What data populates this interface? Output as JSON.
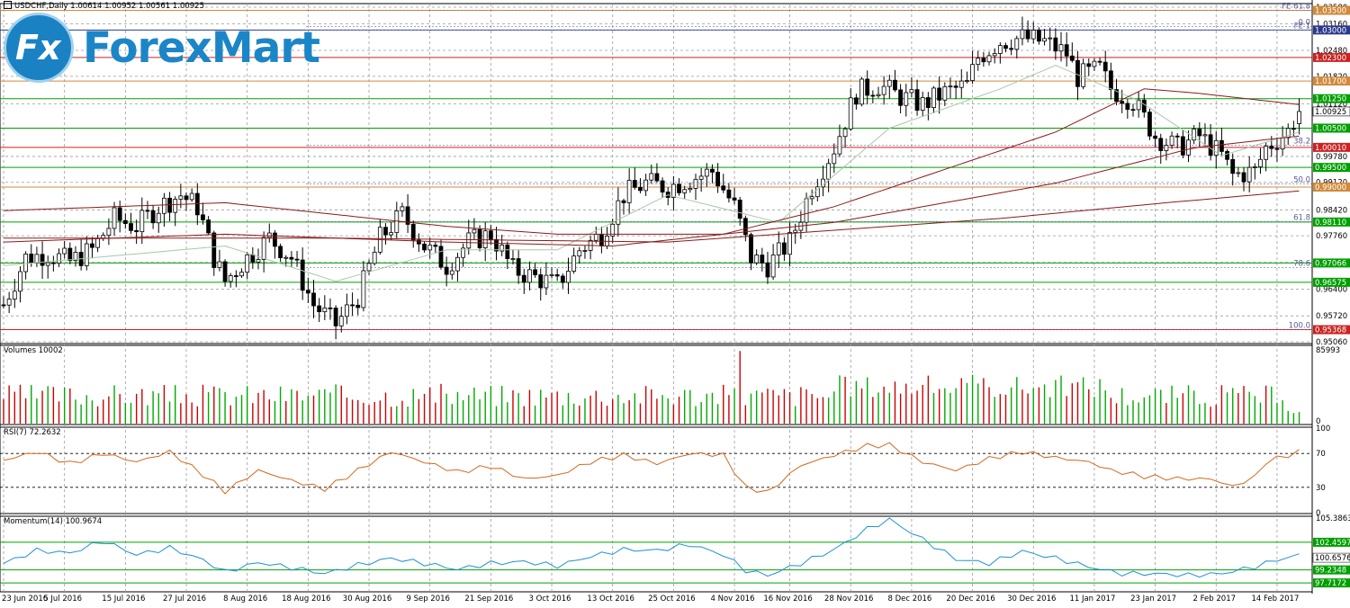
{
  "chart_title": "USDCHF,Daily  1.00614 1.00952 1.00561 1.00925",
  "logo": {
    "letter": "Fx",
    "text": "ForexMart"
  },
  "colors": {
    "grid": "#9a9a9a",
    "bull": "#00aa00",
    "bear": "#cc0000",
    "ma_fast": "#a8c8a8",
    "ma_slow": "#8a1a1a",
    "rsi": "#d2691e",
    "momentum": "#1e90d6"
  },
  "chart_data": [
    {
      "type": "candlestick",
      "ylim": [
        0.9506,
        1.0358
      ],
      "price_ticks": [
        "1.03580",
        "1.03160",
        "1.02480",
        "1.01820",
        "1.01120",
        "0.99780",
        "0.99120",
        "0.98420",
        "0.97760",
        "0.97080",
        "0.96400",
        "0.95720",
        "0.95060"
      ],
      "current_price": "1.00925",
      "level_lines": [
        {
          "value": 1.035,
          "label": "1.03500",
          "color": "#d08a3a"
        },
        {
          "value": 1.03,
          "label": "1.03000",
          "color": "#2c3a8c"
        },
        {
          "value": 1.023,
          "label": "1.02300",
          "color": "#cc2222"
        },
        {
          "value": 1.017,
          "label": "1.01700",
          "color": "#d08a3a"
        },
        {
          "value": 1.0125,
          "label": "1.01250",
          "color": "#00a000"
        },
        {
          "value": 1.005,
          "label": "1.00500",
          "color": "#00a000"
        },
        {
          "value": 1.0001,
          "label": "1.00010",
          "color": "#cc2222"
        },
        {
          "value": 0.995,
          "label": "0.99500",
          "color": "#00a000"
        },
        {
          "value": 0.99,
          "label": "0.99000",
          "color": "#d08a3a"
        },
        {
          "value": 0.9811,
          "label": "0.98110",
          "color": "#00a000"
        },
        {
          "value": 0.97066,
          "label": "0.97066",
          "color": "#00a000"
        },
        {
          "value": 0.96575,
          "label": "0.96575",
          "color": "#00a000"
        },
        {
          "value": 0.95368,
          "label": "0.95368",
          "color": "#cc2222"
        }
      ],
      "fib_lines": [
        {
          "value": 1.035,
          "label": "FE 61.8"
        },
        {
          "value": 1.0309,
          "label": "0.0"
        },
        {
          "value": 1.03,
          "label": "FE 1"
        },
        {
          "value": 1.0006,
          "label": "38.2"
        },
        {
          "value": 0.9908,
          "label": "50.0"
        },
        {
          "value": 0.9812,
          "label": "61.8"
        },
        {
          "value": 0.9695,
          "label": "78.6"
        },
        {
          "value": 0.9537,
          "label": "100.0"
        }
      ],
      "x_labels": [
        "23 Jun 2016",
        "5 Jul 2016",
        "15 Jul 2016",
        "27 Jul 2016",
        "8 Aug 2016",
        "18 Aug 2016",
        "30 Aug 2016",
        "9 Sep 2016",
        "21 Sep 2016",
        "3 Oct 2016",
        "13 Oct 2016",
        "25 Oct 2016",
        "4 Nov 2016",
        "16 Nov 2016",
        "28 Nov 2016",
        "8 Dec 2016",
        "20 Dec 2016",
        "30 Dec 2016",
        "11 Jan 2017",
        "23 Jan 2017",
        "2 Feb 2017",
        "14 Feb 2017"
      ],
      "close_points": [
        [
          0,
          0.96
        ],
        [
          4,
          0.972
        ],
        [
          8,
          0.973
        ],
        [
          12,
          0.971
        ],
        [
          16,
          0.974
        ],
        [
          20,
          0.982
        ],
        [
          24,
          0.98
        ],
        [
          28,
          0.985
        ],
        [
          32,
          0.988
        ],
        [
          35,
          0.985
        ],
        [
          38,
          0.972
        ],
        [
          40,
          0.966
        ],
        [
          44,
          0.972
        ],
        [
          48,
          0.977
        ],
        [
          52,
          0.972
        ],
        [
          56,
          0.96
        ],
        [
          60,
          0.955
        ],
        [
          64,
          0.962
        ],
        [
          68,
          0.977
        ],
        [
          72,
          0.983
        ],
        [
          76,
          0.975
        ],
        [
          80,
          0.97
        ],
        [
          84,
          0.976
        ],
        [
          88,
          0.978
        ],
        [
          92,
          0.969
        ],
        [
          96,
          0.967
        ],
        [
          100,
          0.965
        ],
        [
          104,
          0.974
        ],
        [
          108,
          0.978
        ],
        [
          112,
          0.988
        ],
        [
          116,
          0.991
        ],
        [
          120,
          0.99
        ],
        [
          124,
          0.992
        ],
        [
          128,
          0.994
        ],
        [
          132,
          0.985
        ],
        [
          135,
          0.972
        ],
        [
          138,
          0.97
        ],
        [
          142,
          0.976
        ],
        [
          146,
          0.99
        ],
        [
          150,
          1.0
        ],
        [
          154,
          1.014
        ],
        [
          158,
          1.016
        ],
        [
          162,
          1.013
        ],
        [
          166,
          1.011
        ],
        [
          170,
          1.014
        ],
        [
          174,
          1.016
        ],
        [
          176,
          1.023
        ],
        [
          180,
          1.027
        ],
        [
          184,
          1.028
        ],
        [
          188,
          1.027
        ],
        [
          192,
          1.024
        ],
        [
          194,
          1.018
        ],
        [
          198,
          1.02
        ],
        [
          200,
          1.015
        ],
        [
          204,
          1.012
        ],
        [
          208,
          1.003
        ],
        [
          212,
          1.0
        ],
        [
          216,
          1.003
        ],
        [
          220,
          0.998
        ],
        [
          222,
          0.993
        ],
        [
          226,
          0.994
        ],
        [
          228,
          1.0
        ],
        [
          232,
          1.0042
        ],
        [
          234,
          1.00925
        ]
      ],
      "ma_fast_points": [
        [
          0,
          0.97
        ],
        [
          40,
          0.975
        ],
        [
          60,
          0.966
        ],
        [
          80,
          0.974
        ],
        [
          100,
          0.974
        ],
        [
          120,
          0.988
        ],
        [
          140,
          0.981
        ],
        [
          160,
          1.005
        ],
        [
          180,
          1.015
        ],
        [
          190,
          1.021
        ],
        [
          205,
          1.012
        ],
        [
          220,
          0.998
        ],
        [
          234,
          1.004
        ]
      ],
      "ma_slow_points": [
        [
          0,
          0.984
        ],
        [
          40,
          0.986
        ],
        [
          80,
          0.98
        ],
        [
          100,
          0.978
        ],
        [
          130,
          0.978
        ],
        [
          150,
          0.985
        ],
        [
          190,
          1.004
        ],
        [
          206,
          1.015
        ],
        [
          215,
          1.014
        ],
        [
          234,
          1.011
        ]
      ],
      "ma_slow2_points": [
        [
          0,
          0.976
        ],
        [
          40,
          0.978
        ],
        [
          80,
          0.976
        ],
        [
          110,
          0.975
        ],
        [
          150,
          0.981
        ],
        [
          190,
          0.991
        ],
        [
          215,
          1.0
        ],
        [
          234,
          1.003
        ]
      ],
      "ma_slow3_points": [
        [
          0,
          0.977
        ],
        [
          60,
          0.977
        ],
        [
          120,
          0.976
        ],
        [
          180,
          0.982
        ],
        [
          210,
          0.986
        ],
        [
          234,
          0.989
        ]
      ]
    },
    {
      "type": "bar",
      "label": "Volumes 10002",
      "ylim": [
        0,
        85993
      ],
      "tick_labels": [
        "85993",
        "0"
      ]
    },
    {
      "type": "line",
      "label": "RSI(7) 72.2632",
      "ylim": [
        0,
        100
      ],
      "tick_labels": [
        "100",
        "70",
        "30",
        "0"
      ],
      "levels": [
        70,
        30
      ],
      "points": [
        [
          0,
          62
        ],
        [
          6,
          72
        ],
        [
          12,
          58
        ],
        [
          18,
          70
        ],
        [
          24,
          60
        ],
        [
          30,
          72
        ],
        [
          36,
          45
        ],
        [
          40,
          25
        ],
        [
          46,
          50
        ],
        [
          52,
          38
        ],
        [
          58,
          28
        ],
        [
          64,
          50
        ],
        [
          70,
          72
        ],
        [
          76,
          60
        ],
        [
          82,
          48
        ],
        [
          88,
          55
        ],
        [
          94,
          40
        ],
        [
          100,
          44
        ],
        [
          106,
          60
        ],
        [
          112,
          68
        ],
        [
          118,
          58
        ],
        [
          124,
          70
        ],
        [
          130,
          68
        ],
        [
          134,
          30
        ],
        [
          138,
          24
        ],
        [
          144,
          56
        ],
        [
          150,
          68
        ],
        [
          156,
          79
        ],
        [
          160,
          80
        ],
        [
          166,
          60
        ],
        [
          172,
          50
        ],
        [
          178,
          64
        ],
        [
          184,
          72
        ],
        [
          190,
          65
        ],
        [
          196,
          60
        ],
        [
          200,
          50
        ],
        [
          206,
          43
        ],
        [
          212,
          40
        ],
        [
          218,
          40
        ],
        [
          222,
          31
        ],
        [
          226,
          42
        ],
        [
          228,
          60
        ],
        [
          234,
          72
        ]
      ]
    },
    {
      "type": "line",
      "label": "Momentum(14) 100.9674",
      "ylim": [
        97.1,
        105.3863
      ],
      "tick_labels": [
        "105.3863",
        "102.4597",
        "100.6576",
        "99.2348",
        "97.7172"
      ],
      "levels": [
        102.4597,
        99.2348,
        97.7172
      ],
      "points": [
        [
          0,
          100.0
        ],
        [
          6,
          101.5
        ],
        [
          12,
          101.2
        ],
        [
          18,
          102.6
        ],
        [
          24,
          101.0
        ],
        [
          30,
          101.8
        ],
        [
          36,
          100.4
        ],
        [
          40,
          99.0
        ],
        [
          46,
          100.1
        ],
        [
          52,
          99.5
        ],
        [
          58,
          98.8
        ],
        [
          64,
          99.8
        ],
        [
          70,
          100.6
        ],
        [
          76,
          100.0
        ],
        [
          82,
          99.3
        ],
        [
          88,
          100.0
        ],
        [
          94,
          100.2
        ],
        [
          100,
          99.7
        ],
        [
          106,
          100.8
        ],
        [
          112,
          101.6
        ],
        [
          118,
          101.5
        ],
        [
          124,
          102.2
        ],
        [
          130,
          101.0
        ],
        [
          134,
          99.2
        ],
        [
          138,
          98.6
        ],
        [
          144,
          100.0
        ],
        [
          150,
          101.6
        ],
        [
          156,
          104.0
        ],
        [
          160,
          105.1
        ],
        [
          166,
          102.8
        ],
        [
          172,
          100.5
        ],
        [
          178,
          100.0
        ],
        [
          184,
          101.4
        ],
        [
          190,
          100.6
        ],
        [
          196,
          99.6
        ],
        [
          202,
          98.8
        ],
        [
          208,
          98.8
        ],
        [
          214,
          98.6
        ],
        [
          220,
          98.8
        ],
        [
          226,
          99.6
        ],
        [
          230,
          100.4
        ],
        [
          234,
          100.9674
        ]
      ]
    }
  ]
}
